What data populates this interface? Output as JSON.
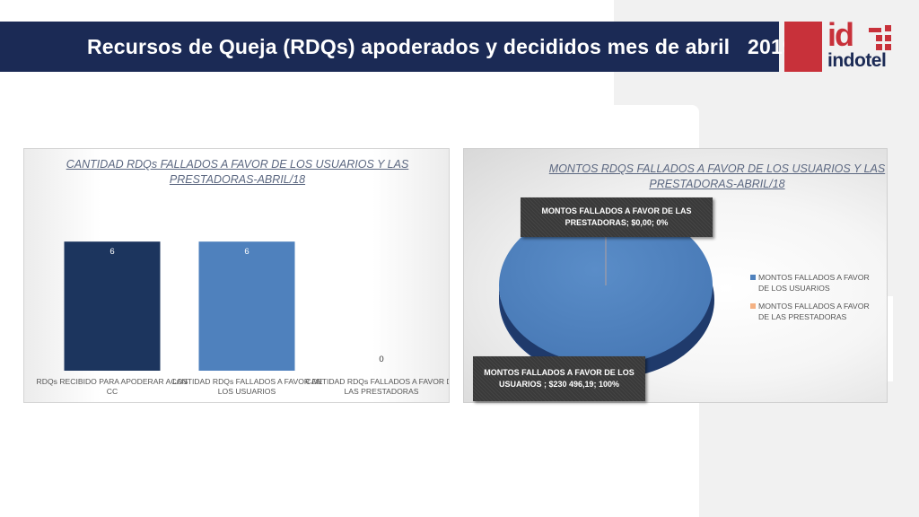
{
  "header": {
    "title": "Recursos de Queja (RDQs) apoderados y decididos mes de abril   2019"
  },
  "logo": {
    "mark": "id",
    "word": "indotel"
  },
  "colors": {
    "navy": "#1b2a55",
    "brand_red": "#c8313a",
    "bar_dark": "#1c355e",
    "bar_light": "#4f81bd",
    "pie_blue": "#4f81bd",
    "pie_orange": "#f4b183"
  },
  "chart_data": [
    {
      "type": "bar",
      "title": "CANTIDAD RDQs FALLADOS A FAVOR DE LOS USUARIOS Y LAS PRESTADORAS-ABRIL/18",
      "categories": [
        "RDQs RECIBIDO PARA APODERAR A LOS CC",
        "CANTIDAD RDQs FALLADOS A FAVOR DE LOS USUARIOS",
        "CANTIDAD RDQs FALLADOS A FAVOR DE LAS PRESTADORAS"
      ],
      "values": [
        6,
        6,
        0
      ],
      "data_labels": [
        "6",
        "6",
        "0"
      ],
      "ylim": [
        0,
        6.8
      ],
      "grid": false,
      "legend": "none"
    },
    {
      "type": "pie",
      "title": "MONTOS RDQS FALLADOS A FAVOR DE LOS  USUARIOS Y LAS PRESTADORAS-ABRIL/18",
      "slices": [
        {
          "name": "MONTOS  FALLADOS A FAVOR DE LOS USUARIOS",
          "value": 230496.19,
          "percent": 100
        },
        {
          "name": "MONTOS FALLADOS  A FAVOR DE LAS PRESTADORAS",
          "value": 0.0,
          "percent": 0
        }
      ],
      "callouts": [
        "MONTOS FALLADOS  A FAVOR DE LAS PRESTADORAS; $0,00; 0%",
        "MONTOS  FALLADOS A FAVOR DE LOS USUARIOS ; $230 496,19; 100%"
      ],
      "legend": "right"
    }
  ]
}
